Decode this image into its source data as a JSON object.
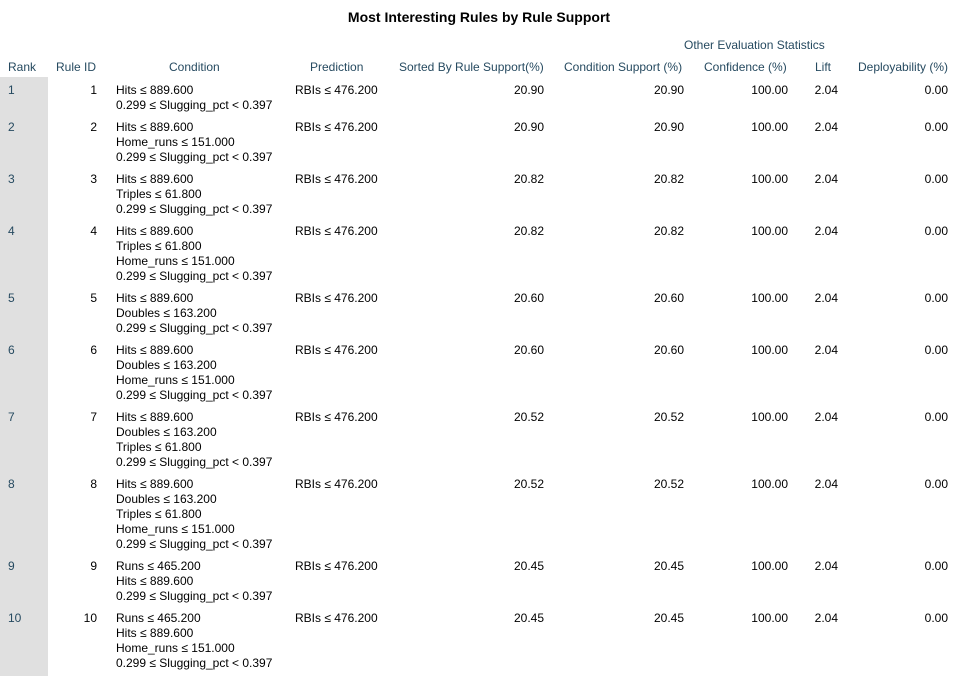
{
  "title": "Most Interesting Rules by Rule Support",
  "group_header": "Other Evaluation Statistics",
  "columns": {
    "rank": "Rank",
    "rule_id": "Rule ID",
    "condition": "Condition",
    "prediction": "Prediction",
    "rule_support": "Sorted By Rule Support(%)",
    "condition_support": "Condition Support (%)",
    "confidence": "Confidence (%)",
    "lift": "Lift",
    "deployability": "Deployability (%)"
  },
  "rows": [
    {
      "rank": "1",
      "rule_id": "1",
      "conditions": [
        "Hits ≤ 889.600",
        "0.299 ≤ Slugging_pct < 0.397"
      ],
      "prediction": "RBIs ≤ 476.200",
      "rule_support": "20.90",
      "condition_support": "20.90",
      "confidence": "100.00",
      "lift": "2.04",
      "deployability": "0.00"
    },
    {
      "rank": "2",
      "rule_id": "2",
      "conditions": [
        "Hits ≤ 889.600",
        "Home_runs ≤ 151.000",
        "0.299 ≤ Slugging_pct < 0.397"
      ],
      "prediction": "RBIs ≤ 476.200",
      "rule_support": "20.90",
      "condition_support": "20.90",
      "confidence": "100.00",
      "lift": "2.04",
      "deployability": "0.00"
    },
    {
      "rank": "3",
      "rule_id": "3",
      "conditions": [
        "Hits ≤ 889.600",
        "Triples ≤ 61.800",
        "0.299 ≤ Slugging_pct < 0.397"
      ],
      "prediction": "RBIs ≤ 476.200",
      "rule_support": "20.82",
      "condition_support": "20.82",
      "confidence": "100.00",
      "lift": "2.04",
      "deployability": "0.00"
    },
    {
      "rank": "4",
      "rule_id": "4",
      "conditions": [
        "Hits ≤ 889.600",
        "Triples ≤ 61.800",
        "Home_runs ≤ 151.000",
        "0.299 ≤ Slugging_pct < 0.397"
      ],
      "prediction": "RBIs ≤ 476.200",
      "rule_support": "20.82",
      "condition_support": "20.82",
      "confidence": "100.00",
      "lift": "2.04",
      "deployability": "0.00"
    },
    {
      "rank": "5",
      "rule_id": "5",
      "conditions": [
        "Hits ≤ 889.600",
        "Doubles ≤ 163.200",
        "0.299 ≤ Slugging_pct < 0.397"
      ],
      "prediction": "RBIs ≤ 476.200",
      "rule_support": "20.60",
      "condition_support": "20.60",
      "confidence": "100.00",
      "lift": "2.04",
      "deployability": "0.00"
    },
    {
      "rank": "6",
      "rule_id": "6",
      "conditions": [
        "Hits ≤ 889.600",
        "Doubles ≤ 163.200",
        "Home_runs ≤ 151.000",
        "0.299 ≤ Slugging_pct < 0.397"
      ],
      "prediction": "RBIs ≤ 476.200",
      "rule_support": "20.60",
      "condition_support": "20.60",
      "confidence": "100.00",
      "lift": "2.04",
      "deployability": "0.00"
    },
    {
      "rank": "7",
      "rule_id": "7",
      "conditions": [
        "Hits ≤ 889.600",
        "Doubles ≤ 163.200",
        "Triples ≤ 61.800",
        "0.299 ≤ Slugging_pct < 0.397"
      ],
      "prediction": "RBIs ≤ 476.200",
      "rule_support": "20.52",
      "condition_support": "20.52",
      "confidence": "100.00",
      "lift": "2.04",
      "deployability": "0.00"
    },
    {
      "rank": "8",
      "rule_id": "8",
      "conditions": [
        "Hits ≤ 889.600",
        "Doubles ≤ 163.200",
        "Triples ≤ 61.800",
        "Home_runs ≤ 151.000",
        "0.299 ≤ Slugging_pct < 0.397"
      ],
      "prediction": "RBIs ≤ 476.200",
      "rule_support": "20.52",
      "condition_support": "20.52",
      "confidence": "100.00",
      "lift": "2.04",
      "deployability": "0.00"
    },
    {
      "rank": "9",
      "rule_id": "9",
      "conditions": [
        "Runs ≤ 465.200",
        "Hits ≤ 889.600",
        "0.299 ≤ Slugging_pct < 0.397"
      ],
      "prediction": "RBIs ≤ 476.200",
      "rule_support": "20.45",
      "condition_support": "20.45",
      "confidence": "100.00",
      "lift": "2.04",
      "deployability": "0.00"
    },
    {
      "rank": "10",
      "rule_id": "10",
      "conditions": [
        "Runs ≤ 465.200",
        "Hits ≤ 889.600",
        "Home_runs ≤ 151.000",
        "0.299 ≤ Slugging_pct < 0.397"
      ],
      "prediction": "RBIs ≤ 476.200",
      "rule_support": "20.45",
      "condition_support": "20.45",
      "confidence": "100.00",
      "lift": "2.04",
      "deployability": "0.00"
    }
  ],
  "colors": {
    "header_text": "#264a60",
    "rank_strip": "#e0e0e0"
  }
}
